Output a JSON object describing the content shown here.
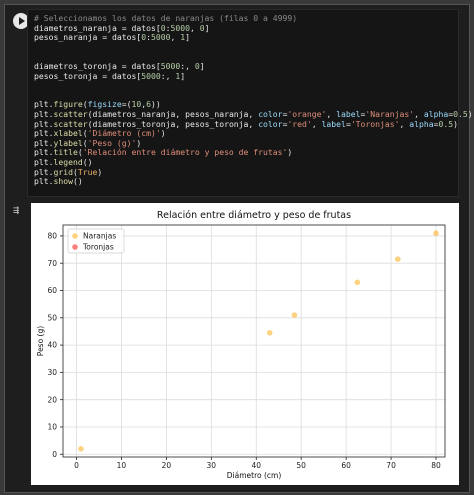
{
  "code_lines": [
    [
      {
        "t": "# Seleccionamos los datos de naranjas (filas 0 a 4999)",
        "c": "comment"
      }
    ],
    [
      {
        "t": "diametros_naranja = datos[",
        "c": ""
      },
      {
        "t": "0",
        "c": "num"
      },
      {
        "t": ":",
        "c": ""
      },
      {
        "t": "5000",
        "c": "num"
      },
      {
        "t": ", ",
        "c": ""
      },
      {
        "t": "0",
        "c": "num"
      },
      {
        "t": "]",
        "c": ""
      }
    ],
    [
      {
        "t": "pesos_naranja = datos[",
        "c": ""
      },
      {
        "t": "0",
        "c": "num"
      },
      {
        "t": ":",
        "c": ""
      },
      {
        "t": "5000",
        "c": "num"
      },
      {
        "t": ", ",
        "c": ""
      },
      {
        "t": "1",
        "c": "num"
      },
      {
        "t": "]",
        "c": ""
      }
    ],
    [],
    [],
    [
      {
        "t": "diametros_toronja = datos[",
        "c": ""
      },
      {
        "t": "5000",
        "c": "num"
      },
      {
        "t": ":, ",
        "c": ""
      },
      {
        "t": "0",
        "c": "num"
      },
      {
        "t": "]",
        "c": ""
      }
    ],
    [
      {
        "t": "pesos_toronja = datos[",
        "c": ""
      },
      {
        "t": "5000",
        "c": "num"
      },
      {
        "t": ":, ",
        "c": ""
      },
      {
        "t": "1",
        "c": "num"
      },
      {
        "t": "]",
        "c": ""
      }
    ],
    [],
    [],
    [
      {
        "t": "plt.",
        "c": ""
      },
      {
        "t": "figure",
        "c": "fn"
      },
      {
        "t": "(",
        "c": ""
      },
      {
        "t": "figsize",
        "c": "param"
      },
      {
        "t": "=(",
        "c": ""
      },
      {
        "t": "10",
        "c": "num"
      },
      {
        "t": ",",
        "c": ""
      },
      {
        "t": "6",
        "c": "num"
      },
      {
        "t": "))",
        "c": ""
      }
    ],
    [
      {
        "t": "plt.",
        "c": ""
      },
      {
        "t": "scatter",
        "c": "fn"
      },
      {
        "t": "(diametros_naranja, pesos_naranja, ",
        "c": ""
      },
      {
        "t": "color",
        "c": "param"
      },
      {
        "t": "=",
        "c": ""
      },
      {
        "t": "'orange'",
        "c": "str"
      },
      {
        "t": ", ",
        "c": ""
      },
      {
        "t": "label",
        "c": "param"
      },
      {
        "t": "=",
        "c": ""
      },
      {
        "t": "'Naranjas'",
        "c": "str"
      },
      {
        "t": ", ",
        "c": ""
      },
      {
        "t": "alpha",
        "c": "param"
      },
      {
        "t": "=",
        "c": ""
      },
      {
        "t": "0.5",
        "c": "num"
      },
      {
        "t": ")",
        "c": ""
      }
    ],
    [
      {
        "t": "plt.",
        "c": ""
      },
      {
        "t": "scatter",
        "c": "fn"
      },
      {
        "t": "(diametros_toronja, pesos_toronja, ",
        "c": ""
      },
      {
        "t": "color",
        "c": "param"
      },
      {
        "t": "=",
        "c": ""
      },
      {
        "t": "'red'",
        "c": "str"
      },
      {
        "t": ", ",
        "c": ""
      },
      {
        "t": "label",
        "c": "param"
      },
      {
        "t": "=",
        "c": ""
      },
      {
        "t": "'Toronjas'",
        "c": "str"
      },
      {
        "t": ", ",
        "c": ""
      },
      {
        "t": "alpha",
        "c": "param"
      },
      {
        "t": "=",
        "c": ""
      },
      {
        "t": "0.5",
        "c": "num"
      },
      {
        "t": ")",
        "c": ""
      }
    ],
    [
      {
        "t": "plt.",
        "c": ""
      },
      {
        "t": "xlabel",
        "c": "fn"
      },
      {
        "t": "(",
        "c": ""
      },
      {
        "t": "'Diámetro (cm)'",
        "c": "str"
      },
      {
        "t": ")",
        "c": ""
      }
    ],
    [
      {
        "t": "plt.",
        "c": ""
      },
      {
        "t": "ylabel",
        "c": "fn"
      },
      {
        "t": "(",
        "c": ""
      },
      {
        "t": "'Peso (g)'",
        "c": "str"
      },
      {
        "t": ")",
        "c": ""
      }
    ],
    [
      {
        "t": "plt.",
        "c": ""
      },
      {
        "t": "title",
        "c": "fn"
      },
      {
        "t": "(",
        "c": ""
      },
      {
        "t": "'Relación entre diámetro y peso de frutas'",
        "c": "str"
      },
      {
        "t": ")",
        "c": ""
      }
    ],
    [
      {
        "t": "plt.",
        "c": ""
      },
      {
        "t": "legend",
        "c": "fn"
      },
      {
        "t": "()",
        "c": ""
      }
    ],
    [
      {
        "t": "plt.",
        "c": ""
      },
      {
        "t": "grid",
        "c": "fn"
      },
      {
        "t": "(",
        "c": ""
      },
      {
        "t": "True",
        "c": "kw"
      },
      {
        "t": ")",
        "c": ""
      }
    ],
    [
      {
        "t": "plt.",
        "c": ""
      },
      {
        "t": "show",
        "c": "fn"
      },
      {
        "t": "()",
        "c": ""
      }
    ]
  ],
  "chart_data": {
    "type": "scatter",
    "title": "Relación entre diámetro y peso de frutas",
    "xlabel": "Diámetro (cm)",
    "ylabel": "Peso (g)",
    "xlim": [
      -3,
      82
    ],
    "ylim": [
      -1,
      84
    ],
    "xticks": [
      0,
      10,
      20,
      30,
      40,
      50,
      60,
      70,
      80
    ],
    "yticks": [
      0,
      10,
      20,
      30,
      40,
      50,
      60,
      70,
      80
    ],
    "grid": true,
    "legend_position": "top-left",
    "series": [
      {
        "name": "Naranjas",
        "color": "#ffa500",
        "alpha": 0.5,
        "points": [
          [
            1,
            2
          ],
          [
            43,
            44.5
          ],
          [
            48.5,
            51
          ],
          [
            62.5,
            63
          ],
          [
            71.5,
            71.5
          ],
          [
            80,
            81
          ]
        ]
      },
      {
        "name": "Toronjas",
        "color": "#ff0000",
        "alpha": 0.5,
        "points": []
      }
    ]
  }
}
